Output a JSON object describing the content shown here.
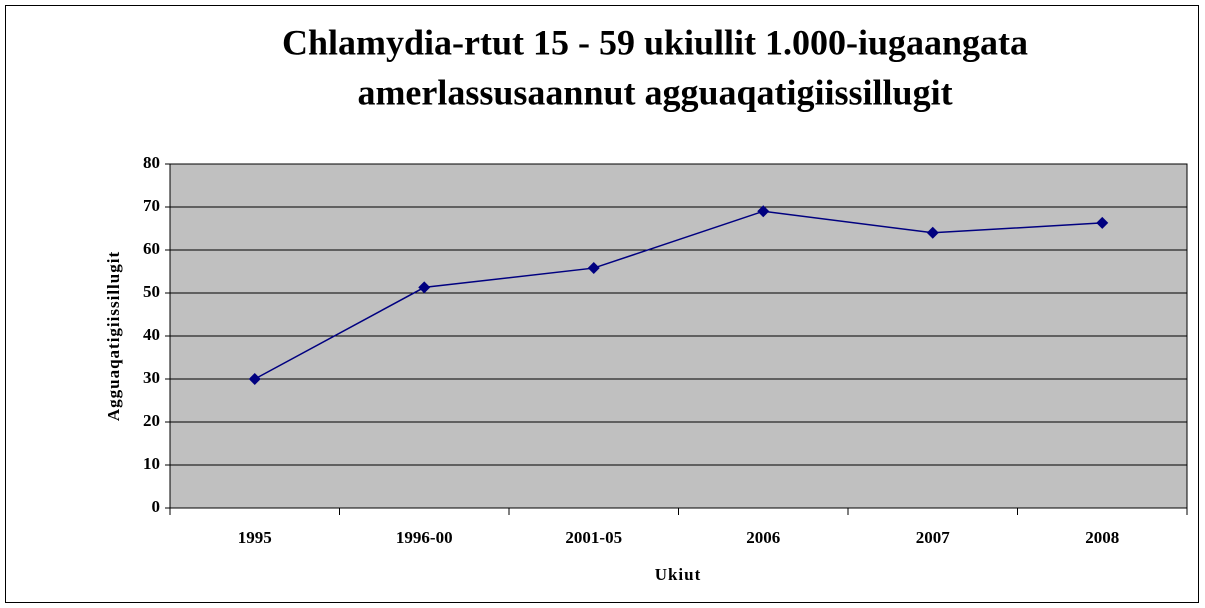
{
  "chart_data": {
    "type": "line",
    "title": [
      "Chlamydia-rtut 15 - 59 ukiullit 1.000-iugaangata",
      "amerlassusaannut agguaqatigiissillugit"
    ],
    "x_label": "Ukiut",
    "y_label": "Agguaqatigiissillugit",
    "categories": [
      "1995",
      "1996-00",
      "2001-05",
      "2006",
      "2007",
      "2008"
    ],
    "values": [
      30,
      51.3,
      55.8,
      69,
      64,
      66.3
    ],
    "color": "#000080",
    "plot_background": "#c0c0c0",
    "ylim": [
      0,
      80
    ],
    "yticks": [
      0,
      10,
      20,
      30,
      40,
      50,
      60,
      70,
      80
    ],
    "grid": true
  }
}
